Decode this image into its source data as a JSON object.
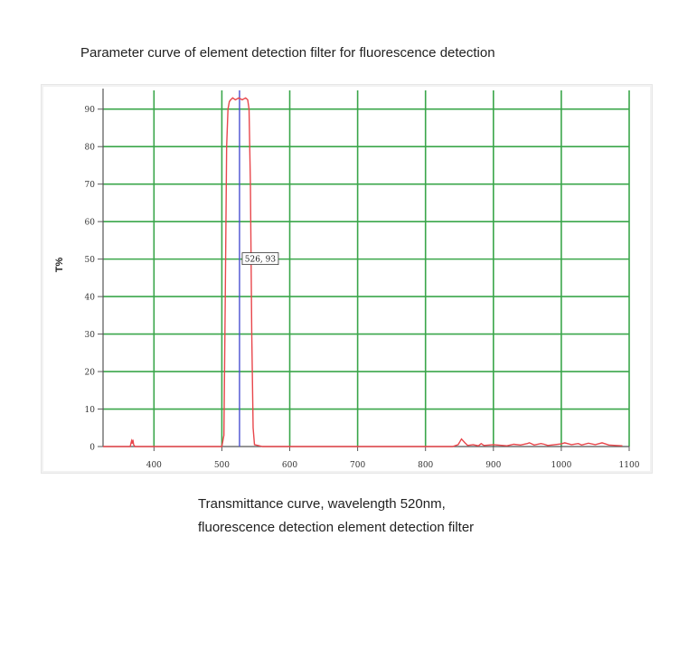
{
  "page": {
    "title": "Parameter curve of element detection filter for fluorescence detection",
    "caption_line1": "Transmittance curve, wavelength 520nm,",
    "caption_line2": "fluorescence detection element detection filter"
  },
  "chart_data": {
    "type": "line",
    "title": "",
    "xlabel": "",
    "ylabel": "T%",
    "xlim": [
      325,
      1100
    ],
    "ylim": [
      0,
      95
    ],
    "x_ticks": [
      400,
      500,
      600,
      700,
      800,
      900,
      1000,
      1100
    ],
    "y_ticks": [
      0,
      10,
      20,
      30,
      40,
      50,
      60,
      70,
      80,
      90
    ],
    "grid": true,
    "colors": {
      "grid": "#3aa64a",
      "curve": "#e8474c",
      "marker": "#4a4fd0",
      "axis": "#555555"
    },
    "series": [
      {
        "values_x": [
          325,
          365,
          367,
          368,
          369,
          370,
          372,
          400,
          450,
          500,
          503,
          505,
          507,
          509,
          511,
          513,
          516,
          520,
          525,
          530,
          535,
          538,
          540,
          542,
          544,
          546,
          548,
          560,
          600,
          700,
          800,
          840,
          848,
          853,
          858,
          862,
          870,
          878,
          882,
          886,
          900,
          920,
          930,
          940,
          950,
          953,
          960,
          970,
          975,
          980,
          990,
          1000,
          1005,
          1015,
          1025,
          1030,
          1040,
          1050,
          1060,
          1065,
          1070,
          1080,
          1090
        ],
        "values_y": [
          0,
          0,
          1.5,
          0.8,
          1.8,
          0.5,
          0,
          0,
          0,
          0,
          3,
          40,
          80,
          90,
          92,
          92.5,
          93,
          92.5,
          93,
          92.5,
          93,
          92.5,
          90,
          70,
          30,
          5,
          0.5,
          0,
          0,
          0,
          0,
          0,
          0.5,
          2,
          1,
          0.3,
          0.5,
          0.2,
          0.8,
          0.3,
          0.5,
          0.2,
          0.6,
          0.4,
          0.8,
          1,
          0.4,
          0.8,
          0.6,
          0.3,
          0.5,
          0.7,
          1,
          0.5,
          0.8,
          0.4,
          0.9,
          0.5,
          1,
          0.7,
          0.4,
          0.3,
          0.2
        ]
      }
    ],
    "markers": [
      {
        "x": 526,
        "label": "526, 93"
      }
    ]
  }
}
